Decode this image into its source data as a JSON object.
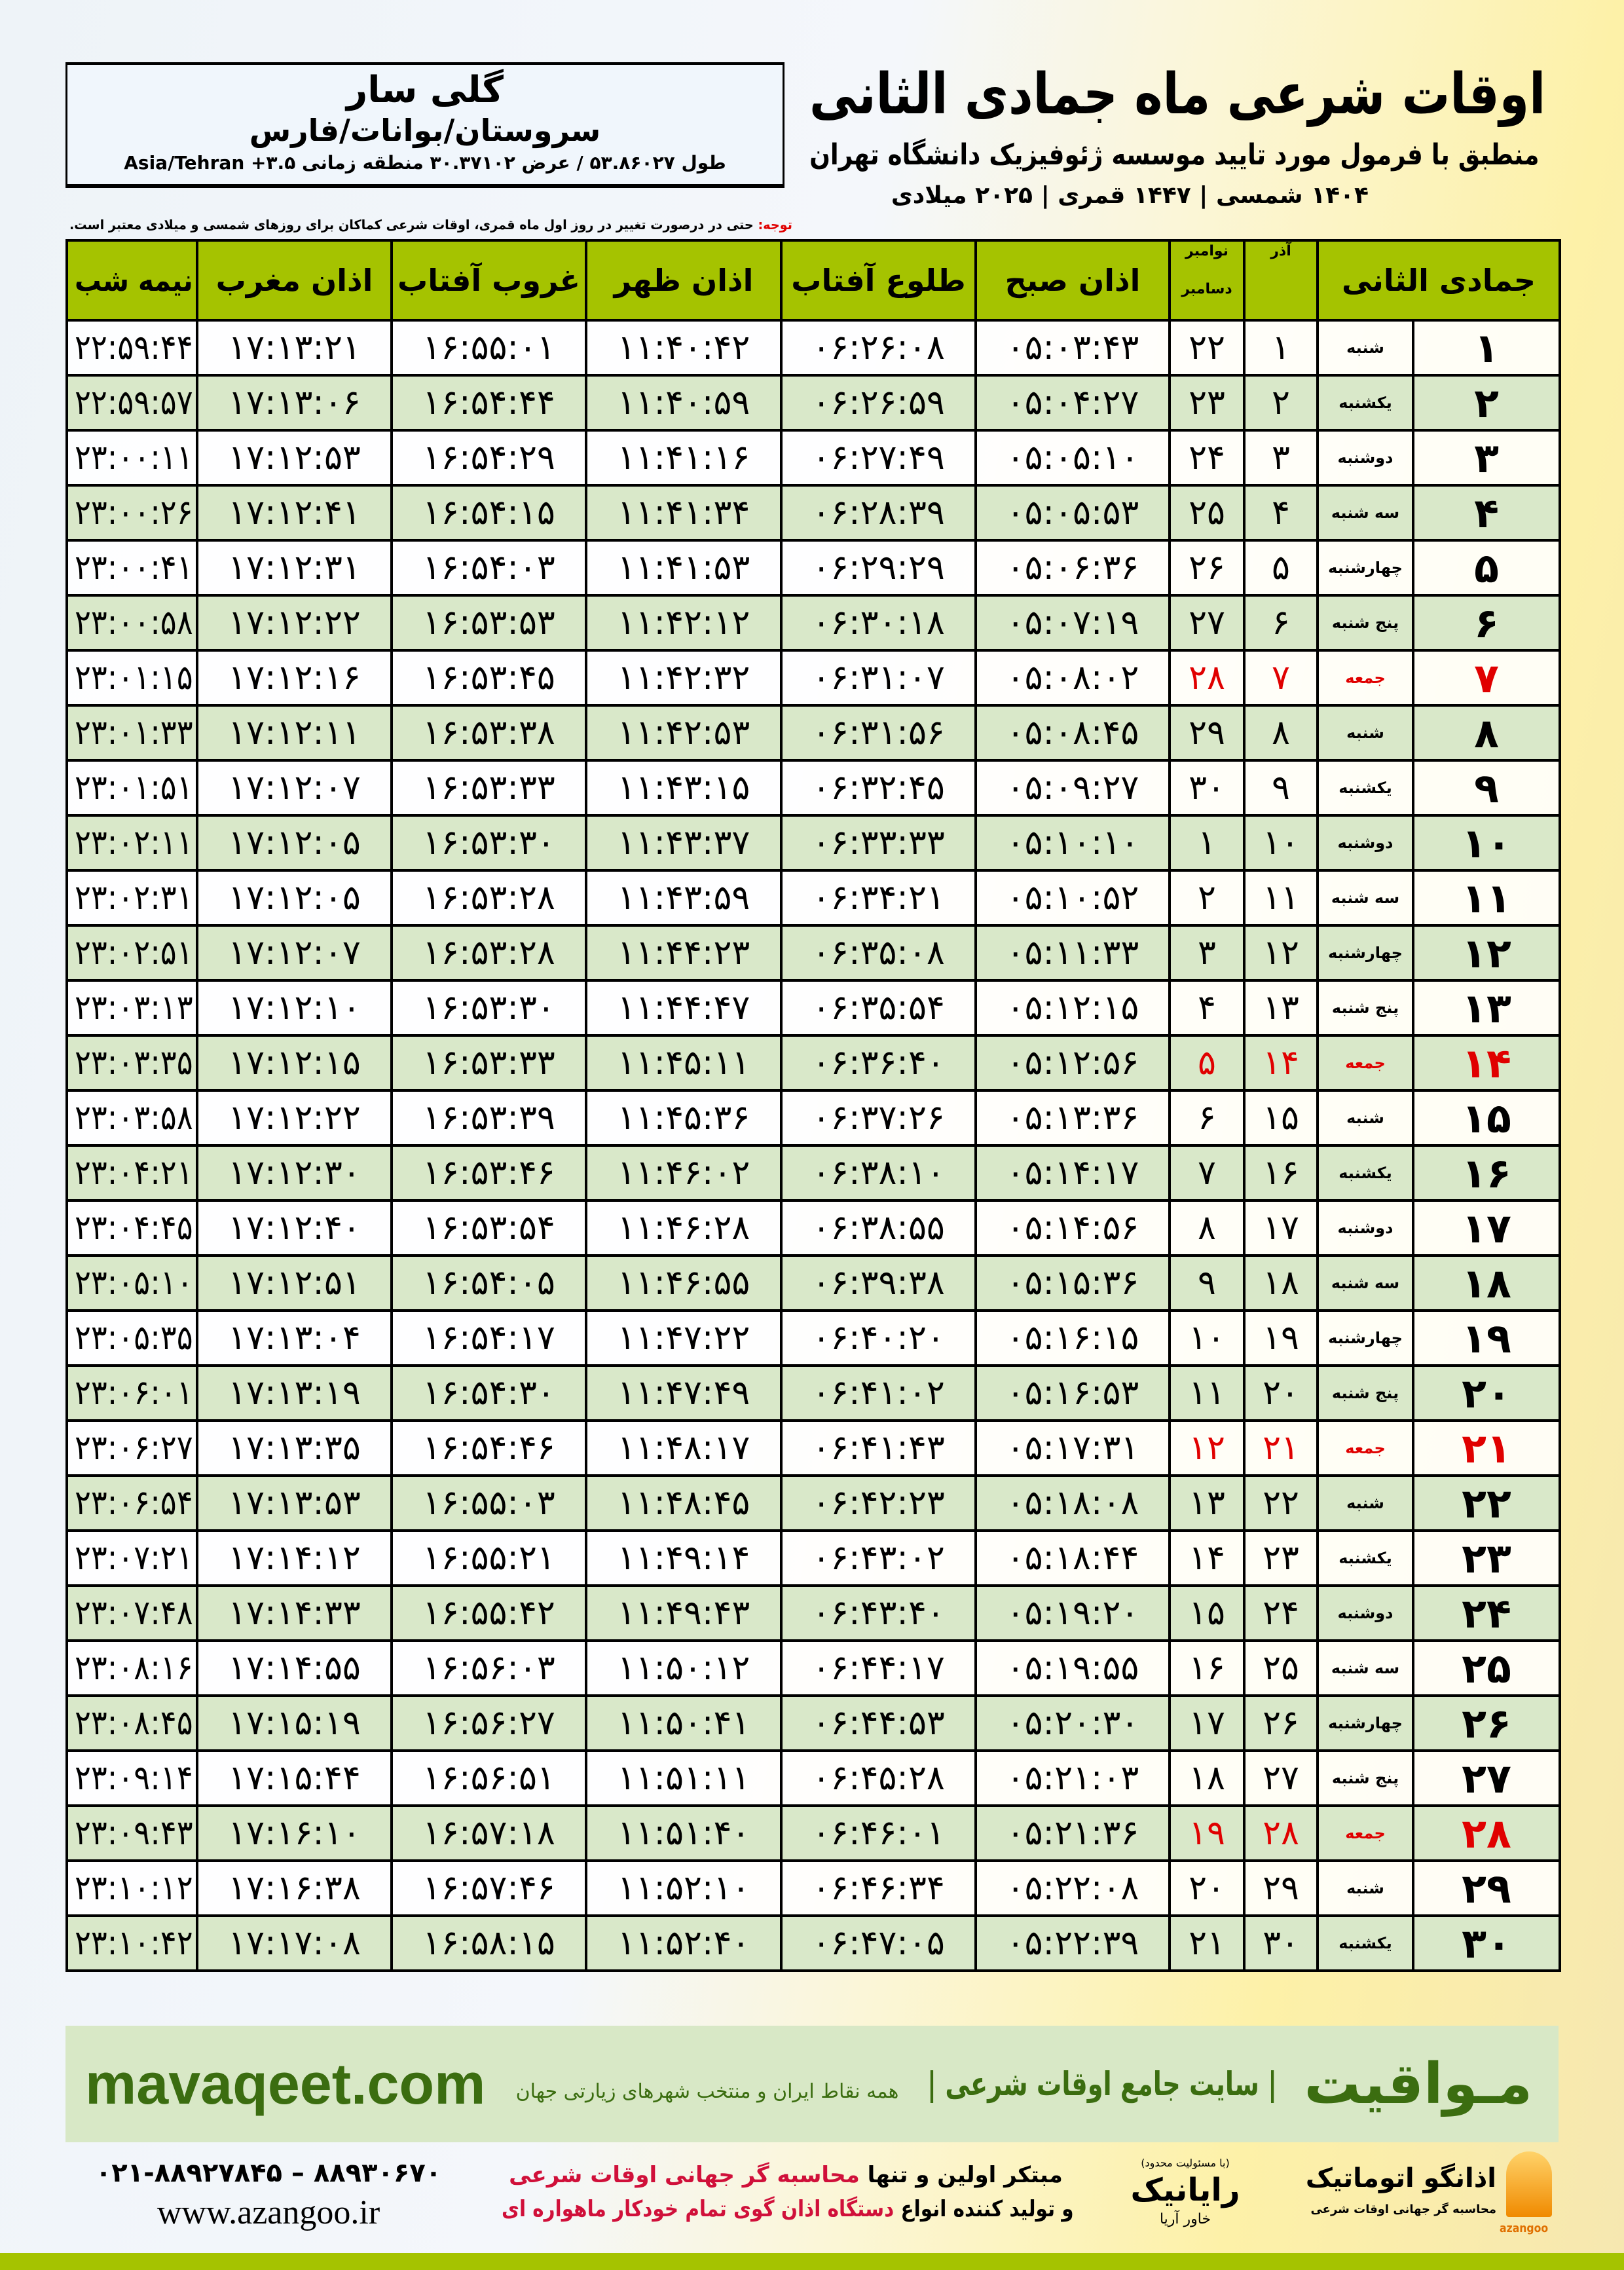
{
  "location": {
    "name": "گلی سار",
    "region": "سروستان/بوانات/فارس",
    "coords": "طول ۵۳.۸۶۰۲۷ / عرض ۳۰.۳۷۱۰۲ منطقه زمانی ۳.۵+ Asia/Tehran"
  },
  "header": {
    "title": "اوقات شرعی ماه جمادی الثانی",
    "subtitle": "منطبق با فرمول مورد تایید موسسه ژئوفیزیک دانشگاه تهران",
    "dateline": "۱۴۰۴ شمسی | ۱۴۴۷ قمری | ۲۰۲۵ میلادی",
    "note_label": "توجه:",
    "note_text": " حتی در درصورت تغییر در روز اول ماه قمری، اوقات شرعی کماکان برای روزهای شمسی و میلادی معتبر است."
  },
  "table": {
    "headers": {
      "hijri": "جمادی الثانی",
      "azar": "آذر",
      "gregorian_top": "نوامبر",
      "gregorian_bottom": "دسامبر",
      "fajr": "اذان صبح",
      "sunrise": "طلوع آفتاب",
      "dhuhr": "اذان ظهر",
      "sunset": "غروب آفتاب",
      "maghrib": "اذان مغرب",
      "midnight": "نیمه شب"
    },
    "holiday_color": "#e00000",
    "rows": [
      [
        "۱",
        "شنبه",
        "۱",
        "۲۲",
        "۰۵:۰۳:۴۳",
        "۰۶:۲۶:۰۸",
        "۱۱:۴۰:۴۲",
        "۱۶:۵۵:۰۱",
        "۱۷:۱۳:۲۱",
        "۲۲:۵۹:۴۴",
        false
      ],
      [
        "۲",
        "یکشنبه",
        "۲",
        "۲۳",
        "۰۵:۰۴:۲۷",
        "۰۶:۲۶:۵۹",
        "۱۱:۴۰:۵۹",
        "۱۶:۵۴:۴۴",
        "۱۷:۱۳:۰۶",
        "۲۲:۵۹:۵۷",
        false
      ],
      [
        "۳",
        "دوشنبه",
        "۳",
        "۲۴",
        "۰۵:۰۵:۱۰",
        "۰۶:۲۷:۴۹",
        "۱۱:۴۱:۱۶",
        "۱۶:۵۴:۲۹",
        "۱۷:۱۲:۵۳",
        "۲۳:۰۰:۱۱",
        false
      ],
      [
        "۴",
        "سه شنبه",
        "۴",
        "۲۵",
        "۰۵:۰۵:۵۳",
        "۰۶:۲۸:۳۹",
        "۱۱:۴۱:۳۴",
        "۱۶:۵۴:۱۵",
        "۱۷:۱۲:۴۱",
        "۲۳:۰۰:۲۶",
        false
      ],
      [
        "۵",
        "چهارشنبه",
        "۵",
        "۲۶",
        "۰۵:۰۶:۳۶",
        "۰۶:۲۹:۲۹",
        "۱۱:۴۱:۵۳",
        "۱۶:۵۴:۰۳",
        "۱۷:۱۲:۳۱",
        "۲۳:۰۰:۴۱",
        false
      ],
      [
        "۶",
        "پنج شنبه",
        "۶",
        "۲۷",
        "۰۵:۰۷:۱۹",
        "۰۶:۳۰:۱۸",
        "۱۱:۴۲:۱۲",
        "۱۶:۵۳:۵۳",
        "۱۷:۱۲:۲۲",
        "۲۳:۰۰:۵۸",
        false
      ],
      [
        "۷",
        "جمعه",
        "۷",
        "۲۸",
        "۰۵:۰۸:۰۲",
        "۰۶:۳۱:۰۷",
        "۱۱:۴۲:۳۲",
        "۱۶:۵۳:۴۵",
        "۱۷:۱۲:۱۶",
        "۲۳:۰۱:۱۵",
        true
      ],
      [
        "۸",
        "شنبه",
        "۸",
        "۲۹",
        "۰۵:۰۸:۴۵",
        "۰۶:۳۱:۵۶",
        "۱۱:۴۲:۵۳",
        "۱۶:۵۳:۳۸",
        "۱۷:۱۲:۱۱",
        "۲۳:۰۱:۳۳",
        false
      ],
      [
        "۹",
        "یکشنبه",
        "۹",
        "۳۰",
        "۰۵:۰۹:۲۷",
        "۰۶:۳۲:۴۵",
        "۱۱:۴۳:۱۵",
        "۱۶:۵۳:۳۳",
        "۱۷:۱۲:۰۷",
        "۲۳:۰۱:۵۱",
        false
      ],
      [
        "۱۰",
        "دوشنبه",
        "۱۰",
        "۱",
        "۰۵:۱۰:۱۰",
        "۰۶:۳۳:۳۳",
        "۱۱:۴۳:۳۷",
        "۱۶:۵۳:۳۰",
        "۱۷:۱۲:۰۵",
        "۲۳:۰۲:۱۱",
        false
      ],
      [
        "۱۱",
        "سه شنبه",
        "۱۱",
        "۲",
        "۰۵:۱۰:۵۲",
        "۰۶:۳۴:۲۱",
        "۱۱:۴۳:۵۹",
        "۱۶:۵۳:۲۸",
        "۱۷:۱۲:۰۵",
        "۲۳:۰۲:۳۱",
        false
      ],
      [
        "۱۲",
        "چهارشنبه",
        "۱۲",
        "۳",
        "۰۵:۱۱:۳۳",
        "۰۶:۳۵:۰۸",
        "۱۱:۴۴:۲۳",
        "۱۶:۵۳:۲۸",
        "۱۷:۱۲:۰۷",
        "۲۳:۰۲:۵۱",
        false
      ],
      [
        "۱۳",
        "پنج شنبه",
        "۱۳",
        "۴",
        "۰۵:۱۲:۱۵",
        "۰۶:۳۵:۵۴",
        "۱۱:۴۴:۴۷",
        "۱۶:۵۳:۳۰",
        "۱۷:۱۲:۱۰",
        "۲۳:۰۳:۱۳",
        false
      ],
      [
        "۱۴",
        "جمعه",
        "۱۴",
        "۵",
        "۰۵:۱۲:۵۶",
        "۰۶:۳۶:۴۰",
        "۱۱:۴۵:۱۱",
        "۱۶:۵۳:۳۳",
        "۱۷:۱۲:۱۵",
        "۲۳:۰۳:۳۵",
        true
      ],
      [
        "۱۵",
        "شنبه",
        "۱۵",
        "۶",
        "۰۵:۱۳:۳۶",
        "۰۶:۳۷:۲۶",
        "۱۱:۴۵:۳۶",
        "۱۶:۵۳:۳۹",
        "۱۷:۱۲:۲۲",
        "۲۳:۰۳:۵۸",
        false
      ],
      [
        "۱۶",
        "یکشنبه",
        "۱۶",
        "۷",
        "۰۵:۱۴:۱۷",
        "۰۶:۳۸:۱۰",
        "۱۱:۴۶:۰۲",
        "۱۶:۵۳:۴۶",
        "۱۷:۱۲:۳۰",
        "۲۳:۰۴:۲۱",
        false
      ],
      [
        "۱۷",
        "دوشنبه",
        "۱۷",
        "۸",
        "۰۵:۱۴:۵۶",
        "۰۶:۳۸:۵۵",
        "۱۱:۴۶:۲۸",
        "۱۶:۵۳:۵۴",
        "۱۷:۱۲:۴۰",
        "۲۳:۰۴:۴۵",
        false
      ],
      [
        "۱۸",
        "سه شنبه",
        "۱۸",
        "۹",
        "۰۵:۱۵:۳۶",
        "۰۶:۳۹:۳۸",
        "۱۱:۴۶:۵۵",
        "۱۶:۵۴:۰۵",
        "۱۷:۱۲:۵۱",
        "۲۳:۰۵:۱۰",
        false
      ],
      [
        "۱۹",
        "چهارشنبه",
        "۱۹",
        "۱۰",
        "۰۵:۱۶:۱۵",
        "۰۶:۴۰:۲۰",
        "۱۱:۴۷:۲۲",
        "۱۶:۵۴:۱۷",
        "۱۷:۱۳:۰۴",
        "۲۳:۰۵:۳۵",
        false
      ],
      [
        "۲۰",
        "پنج شنبه",
        "۲۰",
        "۱۱",
        "۰۵:۱۶:۵۳",
        "۰۶:۴۱:۰۲",
        "۱۱:۴۷:۴۹",
        "۱۶:۵۴:۳۰",
        "۱۷:۱۳:۱۹",
        "۲۳:۰۶:۰۱",
        false
      ],
      [
        "۲۱",
        "جمعه",
        "۲۱",
        "۱۲",
        "۰۵:۱۷:۳۱",
        "۰۶:۴۱:۴۳",
        "۱۱:۴۸:۱۷",
        "۱۶:۵۴:۴۶",
        "۱۷:۱۳:۳۵",
        "۲۳:۰۶:۲۷",
        true
      ],
      [
        "۲۲",
        "شنبه",
        "۲۲",
        "۱۳",
        "۰۵:۱۸:۰۸",
        "۰۶:۴۲:۲۳",
        "۱۱:۴۸:۴۵",
        "۱۶:۵۵:۰۳",
        "۱۷:۱۳:۵۳",
        "۲۳:۰۶:۵۴",
        false
      ],
      [
        "۲۳",
        "یکشنبه",
        "۲۳",
        "۱۴",
        "۰۵:۱۸:۴۴",
        "۰۶:۴۳:۰۲",
        "۱۱:۴۹:۱۴",
        "۱۶:۵۵:۲۱",
        "۱۷:۱۴:۱۲",
        "۲۳:۰۷:۲۱",
        false
      ],
      [
        "۲۴",
        "دوشنبه",
        "۲۴",
        "۱۵",
        "۰۵:۱۹:۲۰",
        "۰۶:۴۳:۴۰",
        "۱۱:۴۹:۴۳",
        "۱۶:۵۵:۴۲",
        "۱۷:۱۴:۳۳",
        "۲۳:۰۷:۴۸",
        false
      ],
      [
        "۲۵",
        "سه شنبه",
        "۲۵",
        "۱۶",
        "۰۵:۱۹:۵۵",
        "۰۶:۴۴:۱۷",
        "۱۱:۵۰:۱۲",
        "۱۶:۵۶:۰۳",
        "۱۷:۱۴:۵۵",
        "۲۳:۰۸:۱۶",
        false
      ],
      [
        "۲۶",
        "چهارشنبه",
        "۲۶",
        "۱۷",
        "۰۵:۲۰:۳۰",
        "۰۶:۴۴:۵۳",
        "۱۱:۵۰:۴۱",
        "۱۶:۵۶:۲۷",
        "۱۷:۱۵:۱۹",
        "۲۳:۰۸:۴۵",
        false
      ],
      [
        "۲۷",
        "پنج شنبه",
        "۲۷",
        "۱۸",
        "۰۵:۲۱:۰۳",
        "۰۶:۴۵:۲۸",
        "۱۱:۵۱:۱۱",
        "۱۶:۵۶:۵۱",
        "۱۷:۱۵:۴۴",
        "۲۳:۰۹:۱۴",
        false
      ],
      [
        "۲۸",
        "جمعه",
        "۲۸",
        "۱۹",
        "۰۵:۲۱:۳۶",
        "۰۶:۴۶:۰۱",
        "۱۱:۵۱:۴۰",
        "۱۶:۵۷:۱۸",
        "۱۷:۱۶:۱۰",
        "۲۳:۰۹:۴۳",
        true
      ],
      [
        "۲۹",
        "شنبه",
        "۲۹",
        "۲۰",
        "۰۵:۲۲:۰۸",
        "۰۶:۴۶:۳۴",
        "۱۱:۵۲:۱۰",
        "۱۶:۵۷:۴۶",
        "۱۷:۱۶:۳۸",
        "۲۳:۱۰:۱۲",
        false
      ],
      [
        "۳۰",
        "یکشنبه",
        "۳۰",
        "۲۱",
        "۰۵:۲۲:۳۹",
        "۰۶:۴۷:۰۵",
        "۱۱:۵۲:۴۰",
        "۱۶:۵۸:۱۵",
        "۱۷:۱۷:۰۸",
        "۲۳:۱۰:۴۲",
        false
      ]
    ]
  },
  "footer": {
    "brand": "مـواقیت",
    "brand_tagline": "| سایت جامع اوقات شرعی |",
    "brand_tagline2": "همه نقاط ایران و منتخب شهرهای زیارتی جهان",
    "brand_url": "mavaqeet.com",
    "brand_color": "#3b6d10",
    "phone": "۰۲۱-۸۸۹۲۷۸۴۵ – ۸۸۹۳۰۶۷۰",
    "website": "www.azangoo.ir",
    "promo1_a": "مبتکر اولین و تنها ",
    "promo1_b": "محاسبه گر جهانی اوقات شرعی",
    "promo2_a": "و تولید کننده انواع ",
    "promo2_b": "دستگاه اذان گوی تمام خودکار ماهواره ای",
    "rayanik_small": "(با مسئولیت محدود)",
    "rayanik_name": "رایانیک",
    "rayanik_sub": "خاور آریا",
    "azangoo_name": "اذانگو اتوماتیک",
    "azangoo_latin": "azangoo",
    "azangoo_sub": "محاسبه گر جهانی اوقات شرعی"
  }
}
